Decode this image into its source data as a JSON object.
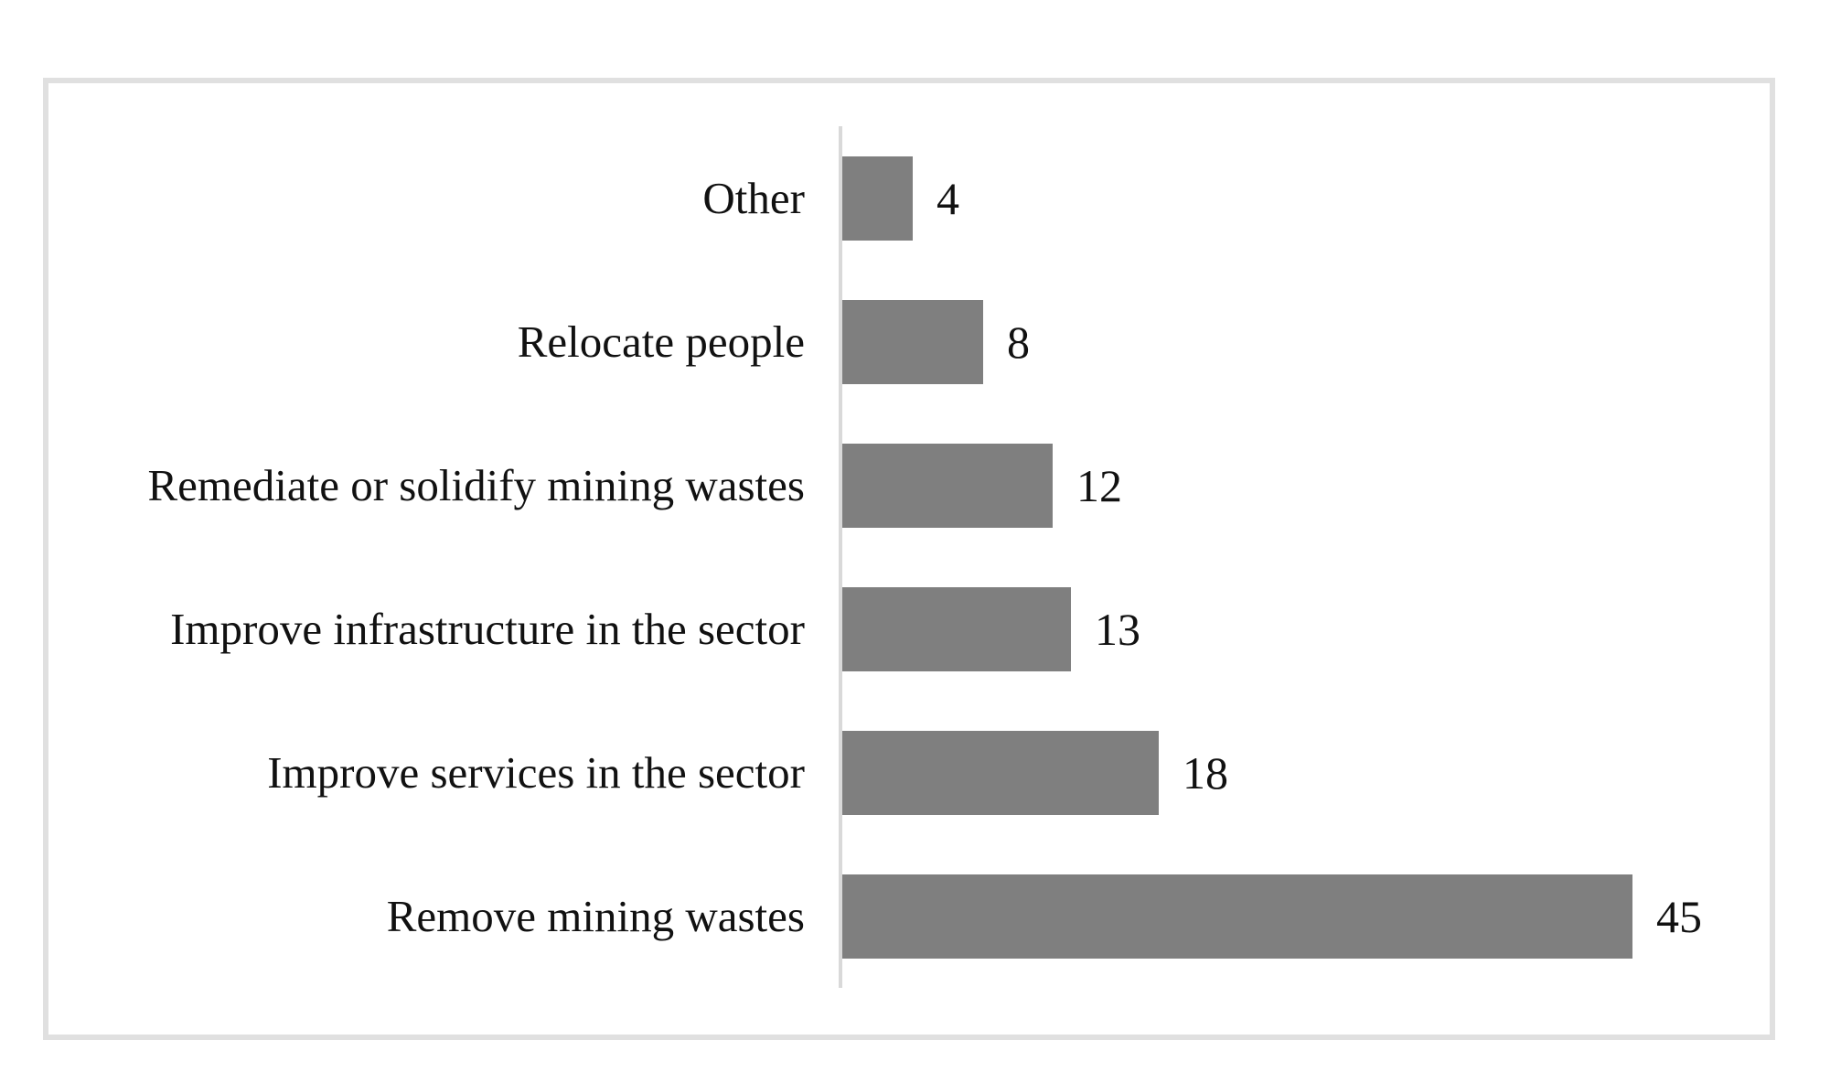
{
  "chart_data": {
    "type": "bar",
    "orientation": "horizontal",
    "title": "",
    "xlabel": "",
    "ylabel": "",
    "categories": [
      "Other",
      "Relocate people",
      "Remediate or solidify mining wastes",
      "Improve infrastructure in the sector",
      "Improve services in the sector",
      "Remove mining wastes"
    ],
    "values": [
      4,
      8,
      12,
      13,
      18,
      45
    ],
    "xlim": [
      0,
      48
    ],
    "grid": false,
    "legend": false,
    "data_labels": "end-of-bar",
    "bar_color": "#7f7f7f",
    "axis_line_color": "#d9d9d9",
    "frame_border_color": "#e0e0e0",
    "text_color": "#111111",
    "background_color": "#ffffff"
  }
}
